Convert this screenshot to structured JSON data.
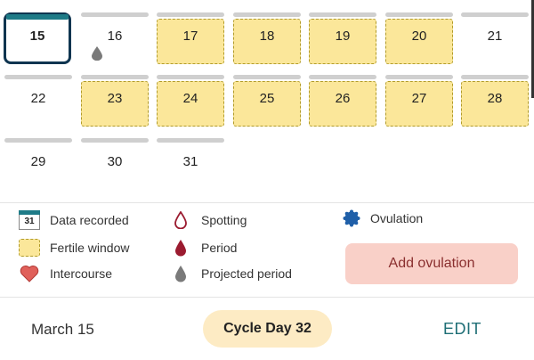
{
  "calendar": {
    "today": "15",
    "row1": [
      "15",
      "16",
      "17",
      "18",
      "19",
      "20",
      "21"
    ],
    "row2": [
      "22",
      "23",
      "24",
      "25",
      "26",
      "27",
      "28"
    ],
    "row3": [
      "29",
      "30",
      "31"
    ]
  },
  "legend": {
    "data_recorded": "Data recorded",
    "data_recorded_icon_num": "31",
    "fertile_window": "Fertile window",
    "intercourse": "Intercourse",
    "spotting": "Spotting",
    "period": "Period",
    "projected_period": "Projected period",
    "ovulation": "Ovulation"
  },
  "actions": {
    "add_ovulation": "Add ovulation",
    "edit": "EDIT"
  },
  "footer": {
    "date": "March 15",
    "cycle_day": "Cycle Day 32"
  },
  "colors": {
    "fertile": "#fbe79a",
    "today_border": "#0f3550",
    "accent": "#1e7b87",
    "period": "#9b1b30",
    "ovulation": "#1f5fa8",
    "heart": "#e0605a",
    "add_button_bg": "#f9d0c8",
    "cycle_pill_bg": "#fdebc4"
  }
}
